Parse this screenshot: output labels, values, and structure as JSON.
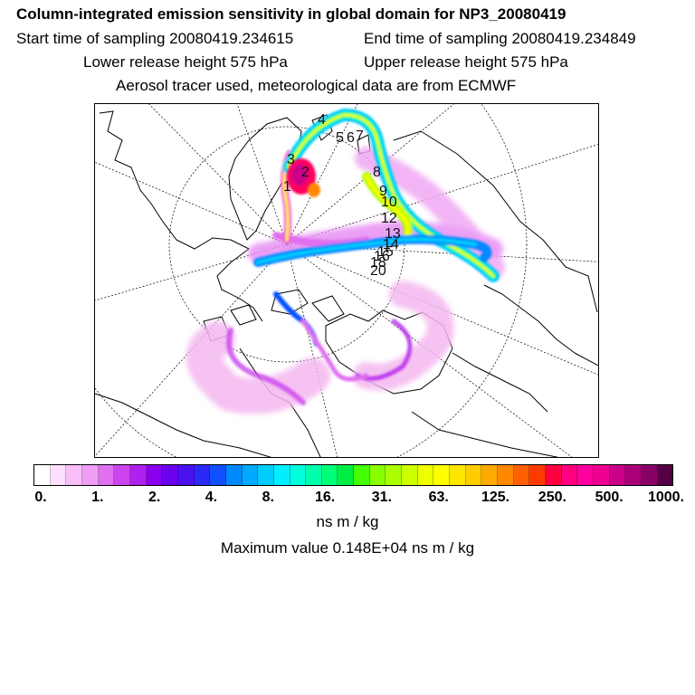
{
  "header": {
    "title": "Column-integrated emission sensitivity in global domain for NP3_20080419",
    "start_label": "Start time of sampling 20080419.234615",
    "end_label": "End time of sampling 20080419.234849",
    "lower_label": "Lower release height  575 hPa",
    "upper_label": "Upper release height  575 hPa",
    "tracer_label": "Aerosol tracer used, meteorological data are from ECMWF"
  },
  "map": {
    "trajectory_labels": [
      "1",
      "2",
      "3",
      "4",
      "5",
      "6",
      "7",
      "8",
      "9",
      "10",
      "12",
      "13",
      "14",
      "15",
      "16",
      "18",
      "20"
    ]
  },
  "colorbar": {
    "colors": [
      "#ffffff",
      "#fde0ff",
      "#f8bff8",
      "#f09ef5",
      "#e070f0",
      "#cc44ee",
      "#b020ee",
      "#8a00ee",
      "#6a00ee",
      "#4a10f0",
      "#2a2af8",
      "#1050ff",
      "#0088ff",
      "#00aaff",
      "#00ccff",
      "#00eeff",
      "#00ffdd",
      "#00ffaa",
      "#00ff77",
      "#00ee44",
      "#44ff00",
      "#88ff00",
      "#aaff00",
      "#ccff00",
      "#eeff00",
      "#ffff00",
      "#ffe600",
      "#ffcc00",
      "#ffaa00",
      "#ff8800",
      "#ff6000",
      "#ff3a00",
      "#ff0040",
      "#ff0080",
      "#ff00a0",
      "#ee0090",
      "#cc0088",
      "#aa0077",
      "#880066",
      "#550044"
    ],
    "tick_labels": [
      "0.",
      "1.",
      "2.",
      "4.",
      "8.",
      "16.",
      "31.",
      "63.",
      "125.",
      "250.",
      "500.",
      "1000."
    ],
    "units": "ns m / kg",
    "max_value_label": "Maximum value  0.148E+04 ns m / kg"
  }
}
